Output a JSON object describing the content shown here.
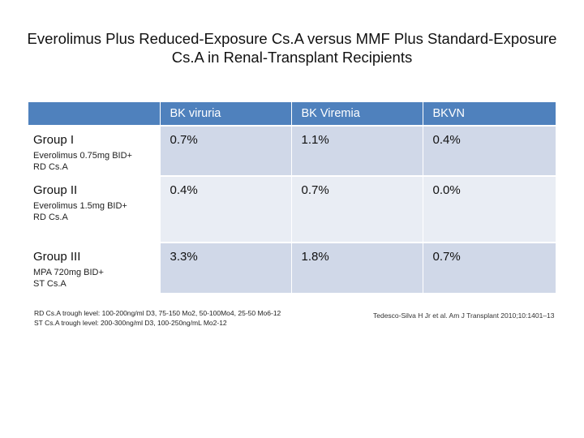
{
  "slide": {
    "title_line1": "Everolimus Plus Reduced-Exposure Cs.A versus MMF Plus Standard-Exposure",
    "title_line2": "Cs.A in Renal-Transplant Recipients"
  },
  "table": {
    "headers": [
      "",
      "BK viruria",
      "BK Viremia",
      "BKVN"
    ],
    "rows": [
      {
        "group": "Group I",
        "regimen_line1": "Everolimus 0.75mg BID+",
        "regimen_line2": "RD Cs.A",
        "values": [
          "0.7%",
          "1.1%",
          "0.4%"
        ]
      },
      {
        "group": "Group II",
        "regimen_line1": "Everolimus 1.5mg BID+",
        "regimen_line2": "RD Cs.A",
        "values": [
          "0.4%",
          "0.7%",
          "0.0%"
        ]
      },
      {
        "group": "Group III",
        "regimen_line1": "MPA 720mg BID+",
        "regimen_line2": "ST Cs.A",
        "values": [
          "3.3%",
          "1.8%",
          "0.7%"
        ]
      }
    ]
  },
  "footnotes": {
    "line1": "RD Cs.A trough level: 100-200ng/ml D3, 75-150 Mo2, 50-100Mo4, 25-50 Mo6-12",
    "line2": "ST Cs.A trough level: 200-300ng/ml D3, 100-250ng/mL Mo2-12",
    "citation": "Tedesco-Silva H Jr et al. Am J Transplant 2010;10:1401–13"
  },
  "colors": {
    "header": "#4f81bd",
    "row_dark": "#d0d8e8",
    "row_light": "#e9edf4"
  }
}
